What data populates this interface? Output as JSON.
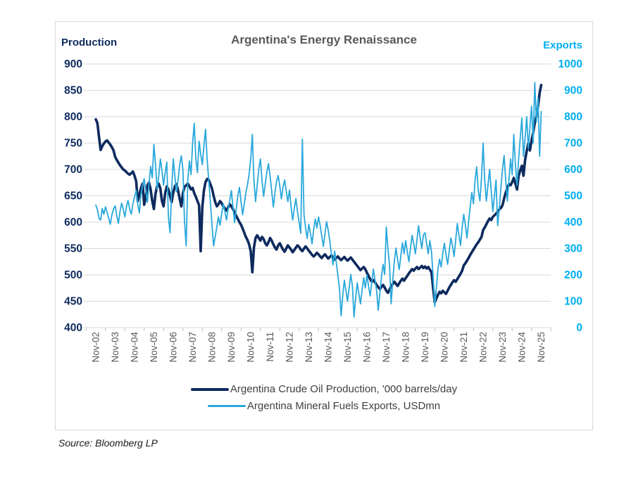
{
  "source": "Source: Bloomberg LP",
  "chart_data": {
    "type": "line",
    "title": "Argentina's Energy Renaissance",
    "x_frequency": "monthly",
    "x_range": [
      "Nov-2002",
      "Nov-2025"
    ],
    "x_tick_labels": [
      "Nov-02",
      "Nov-03",
      "Nov-04",
      "Nov-05",
      "Nov-06",
      "Nov-07",
      "Nov-08",
      "Nov-09",
      "Nov-10",
      "Nov-11",
      "Nov-12",
      "Nov-13",
      "Nov-14",
      "Nov-15",
      "Nov-16",
      "Nov-17",
      "Nov-18",
      "Nov-19",
      "Nov-20",
      "Nov-21",
      "Nov-22",
      "Nov-23",
      "Nov-24",
      "Nov-25"
    ],
    "left_axis": {
      "label": "Production",
      "ylim": [
        400,
        900
      ],
      "ticks": [
        900,
        850,
        800,
        750,
        700,
        650,
        600,
        550,
        500,
        450,
        400
      ],
      "color": "#0E2A5E"
    },
    "right_axis": {
      "label": "Exports",
      "ylim": [
        0,
        1000
      ],
      "ticks": [
        1000,
        900,
        800,
        700,
        600,
        500,
        400,
        300,
        200,
        100,
        0
      ],
      "color": "#00AEEF"
    },
    "grid": true,
    "legend_position": "bottom",
    "grid_color": "#D9D9D9",
    "tick_color": "#BFBFBF",
    "x_label_color": "#595959",
    "series": [
      {
        "name": "Argentina Crude Oil Production, '000 barrels/day",
        "axis": "left",
        "color": "#0E2A5E",
        "stroke_width": 3.6,
        "values": [
          795,
          788,
          762,
          737,
          744,
          749,
          753,
          755,
          751,
          747,
          742,
          736,
          724,
          718,
          713,
          708,
          704,
          700,
          698,
          695,
          692,
          690,
          693,
          696,
          688,
          678,
          640,
          652,
          665,
          673,
          633,
          648,
          670,
          675,
          662,
          640,
          625,
          654,
          668,
          673,
          664,
          640,
          630,
          655,
          668,
          662,
          650,
          638,
          656,
          668,
          672,
          660,
          644,
          630,
          655,
          667,
          670,
          673,
          668,
          662,
          665,
          655,
          648,
          640,
          632,
          545,
          628,
          660,
          676,
          682,
          680,
          672,
          664,
          650,
          638,
          630,
          634,
          640,
          636,
          630,
          626,
          622,
          628,
          634,
          630,
          625,
          618,
          612,
          606,
          600,
          595,
          588,
          580,
          572,
          566,
          558,
          545,
          505,
          552,
          570,
          575,
          570,
          565,
          572,
          568,
          560,
          556,
          562,
          570,
          565,
          558,
          552,
          548,
          556,
          560,
          554,
          548,
          544,
          550,
          556,
          552,
          548,
          543,
          547,
          552,
          556,
          553,
          548,
          545,
          550,
          554,
          550,
          546,
          542,
          538,
          535,
          538,
          542,
          539,
          535,
          532,
          536,
          539,
          535,
          531,
          534,
          537,
          533,
          529,
          532,
          535,
          531,
          528,
          531,
          534,
          530,
          527,
          530,
          533,
          529,
          525,
          521,
          517,
          513,
          509,
          512,
          515,
          511,
          504,
          498,
          492,
          487,
          490,
          486,
          481,
          477,
          473,
          477,
          481,
          476,
          470,
          466,
          472,
          478,
          483,
          487,
          483,
          479,
          484,
          489,
          493,
          489,
          494,
          498,
          503,
          507,
          511,
          508,
          512,
          515,
          511,
          514,
          517,
          513,
          516,
          512,
          515,
          510,
          505,
          475,
          448,
          455,
          462,
          468,
          465,
          470,
          467,
          464,
          470,
          476,
          481,
          486,
          490,
          487,
          492,
          497,
          502,
          508,
          518,
          522,
          527,
          532,
          538,
          543,
          548,
          553,
          558,
          562,
          567,
          572,
          585,
          590,
          596,
          602,
          607,
          604,
          610,
          613,
          616,
          620,
          624,
          627,
          632,
          645,
          656,
          665,
          672,
          670,
          676,
          684,
          673,
          662,
          688,
          698,
          707,
          688,
          718,
          735,
          750,
          736,
          755,
          770,
          788,
          800,
          820,
          845,
          860
        ]
      },
      {
        "name": "Argentina Mineral Fuels Exports, USDmn",
        "axis": "right",
        "color": "#29A8DC",
        "stroke_width": 1.8,
        "values": [
          465,
          448,
          415,
          408,
          452,
          430,
          458,
          438,
          415,
          392,
          428,
          450,
          462,
          425,
          395,
          440,
          472,
          450,
          420,
          458,
          482,
          450,
          430,
          470,
          495,
          520,
          468,
          435,
          505,
          540,
          565,
          520,
          475,
          548,
          612,
          568,
          695,
          618,
          525,
          575,
          640,
          595,
          540,
          588,
          628,
          420,
          360,
          520,
          640,
          575,
          515,
          560,
          618,
          652,
          598,
          400,
          310,
          560,
          632,
          580,
          700,
          775,
          638,
          588,
          707,
          658,
          618,
          688,
          752,
          638,
          558,
          478,
          390,
          310,
          345,
          382,
          420,
          388,
          432,
          470,
          440,
          408,
          452,
          482,
          520,
          458,
          398,
          450,
          500,
          532,
          478,
          428,
          470,
          512,
          542,
          582,
          640,
          733,
          558,
          478,
          540,
          602,
          640,
          558,
          498,
          545,
          590,
          622,
          575,
          518,
          458,
          512,
          555,
          577,
          538,
          488,
          532,
          560,
          518,
          478,
          522,
          458,
          408,
          452,
          490,
          438,
          398,
          358,
          715,
          428,
          378,
          338,
          392,
          358,
          318,
          372,
          412,
          378,
          420,
          388,
          348,
          308,
          355,
          402,
          370,
          328,
          278,
          238,
          290,
          248,
          198,
          148,
          45,
          120,
          180,
          140,
          100,
          152,
          202,
          158,
          40,
          112,
          170,
          128,
          90,
          142,
          190,
          150,
          200,
          158,
          120,
          172,
          222,
          180,
          140,
          66,
          130,
          192,
          240,
          202,
          382,
          300,
          238,
          90,
          180,
          252,
          302,
          258,
          220,
          272,
          322,
          280,
          330,
          288,
          250,
          302,
          350,
          318,
          280,
          332,
          387,
          340,
          300,
          352,
          360,
          318,
          280,
          330,
          288,
          198,
          80,
          150,
          222,
          260,
          230,
          282,
          320,
          278,
          240,
          292,
          340,
          310,
          270,
          332,
          395,
          350,
          312,
          380,
          430,
          388,
          340,
          402,
          460,
          512,
          470,
          558,
          610,
          520,
          480,
          570,
          700,
          558,
          480,
          540,
          600,
          520,
          440,
          500,
          560,
          387,
          450,
          530,
          600,
          653,
          558,
          480,
          560,
          640,
          580,
          733,
          620,
          540,
          640,
          720,
          795,
          650,
          720,
          800,
          680,
          760,
          840,
          700,
          930,
          780,
          870,
          650,
          820
        ]
      }
    ]
  }
}
